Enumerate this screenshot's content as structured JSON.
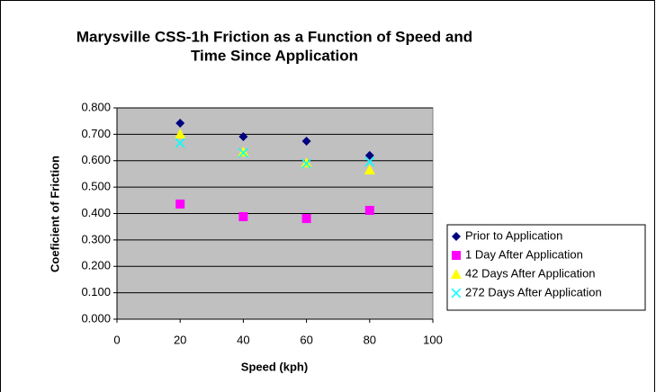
{
  "chart_data": {
    "type": "scatter",
    "title": [
      "Marysville CSS-1h Friction as a Function of Speed and",
      "Time Since Application"
    ],
    "x_label": "Speed (kph)",
    "y_label": "Coeficient of Friction",
    "x": [
      20,
      40,
      60,
      80
    ],
    "series": [
      {
        "name": "Prior to Application",
        "color": "#000080",
        "marker": "diamond",
        "values": [
          0.742,
          0.691,
          0.674,
          0.62
        ]
      },
      {
        "name": "1 Day After Application",
        "color": "#ff00ff",
        "marker": "square",
        "values": [
          0.436,
          0.388,
          0.381,
          0.412
        ]
      },
      {
        "name": "42 Days After Application",
        "color": "#ffff00",
        "marker": "triangle",
        "values": [
          0.701,
          0.633,
          0.592,
          0.565
        ]
      },
      {
        "name": "272 Days After Application",
        "color": "#00ffff",
        "marker": "x",
        "values": [
          0.667,
          0.63,
          0.589,
          0.596
        ]
      }
    ],
    "xlim": [
      0,
      100
    ],
    "xticks": [
      0,
      20,
      40,
      60,
      80,
      100
    ],
    "ylim": [
      0,
      0.8
    ],
    "yticks": [
      {
        "value": 0,
        "label": "0.000"
      },
      {
        "value": 0.1,
        "label": "0.100"
      },
      {
        "value": 0.2,
        "label": "0.200"
      },
      {
        "value": 0.3,
        "label": "0.300"
      },
      {
        "value": 0.4,
        "label": "0.400"
      },
      {
        "value": 0.5,
        "label": "0.500"
      },
      {
        "value": 0.6,
        "label": "0.600"
      },
      {
        "value": 0.7,
        "label": "0.700"
      },
      {
        "value": 0.8,
        "label": "0.800"
      }
    ],
    "grid": true,
    "plot_background": "#c0c0c0",
    "legend": "right"
  }
}
